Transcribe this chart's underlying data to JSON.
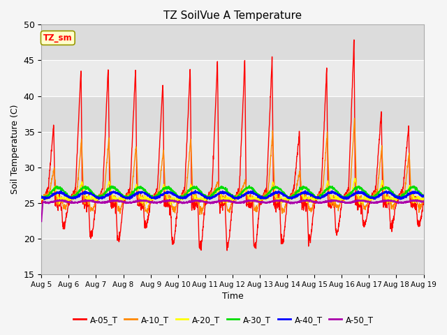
{
  "title": "TZ SoilVue A Temperature",
  "xlabel": "Time",
  "ylabel": "Soil Temperature (C)",
  "ylim": [
    15,
    50
  ],
  "yticks": [
    15,
    20,
    25,
    30,
    35,
    40,
    45,
    50
  ],
  "series_colors": {
    "A-05_T": "#ff0000",
    "A-10_T": "#ff8800",
    "A-20_T": "#ffff00",
    "A-30_T": "#00dd00",
    "A-40_T": "#0000ff",
    "A-50_T": "#aa00aa"
  },
  "legend_label": "TZ_sm",
  "legend_box_color": "#ffffcc",
  "legend_box_edge": "#999900",
  "plot_bg_color": "#e8e8e8",
  "fig_bg_color": "#f5f5f5",
  "num_days": 14,
  "start_day": 5,
  "series_names": [
    "A-05_T",
    "A-10_T",
    "A-20_T",
    "A-30_T",
    "A-40_T",
    "A-50_T"
  ],
  "stripe_colors": [
    "#dcdcdc",
    "#ebebeb"
  ],
  "grid_color": "#ffffff"
}
